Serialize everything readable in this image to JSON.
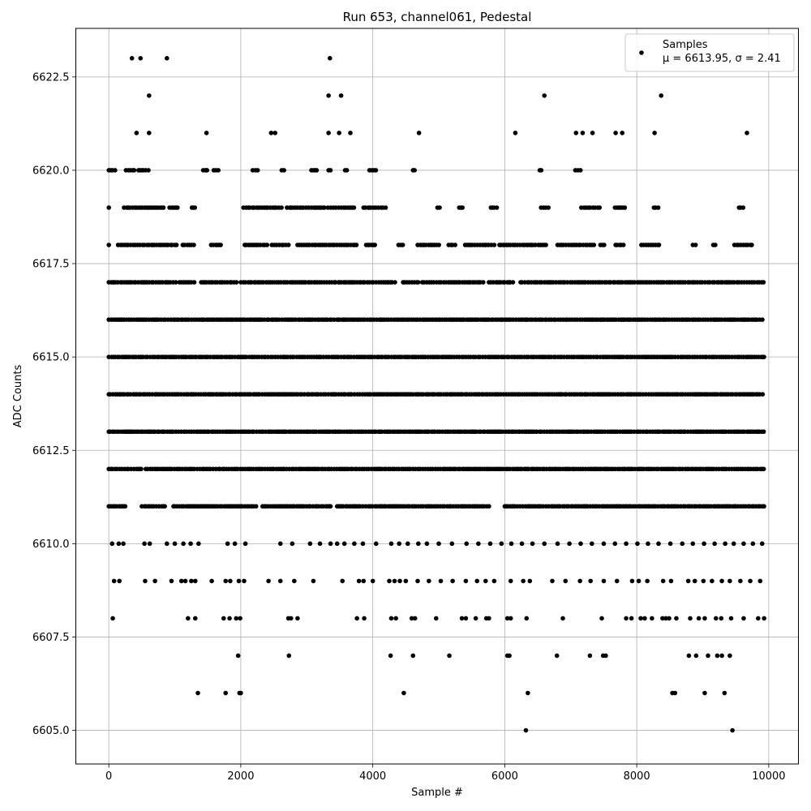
{
  "chart_data": {
    "type": "scatter",
    "title": "Run 653, channel061, Pedestal",
    "xlabel": "Sample #",
    "ylabel": "ADC Counts",
    "xlim": [
      -500,
      10450
    ],
    "ylim": [
      6604.1,
      6623.8
    ],
    "xticks": [
      0,
      2000,
      4000,
      6000,
      8000,
      10000
    ],
    "xtick_labels": [
      "0",
      "2000",
      "4000",
      "6000",
      "8000",
      "10000"
    ],
    "yticks": [
      6605.0,
      6607.5,
      6610.0,
      6612.5,
      6615.0,
      6617.5,
      6620.0,
      6622.5
    ],
    "ytick_labels": [
      "6605.0",
      "6607.5",
      "6610.0",
      "6612.5",
      "6615.0",
      "6617.5",
      "6620.0",
      "6622.5"
    ],
    "grid": true,
    "legend": {
      "position": "top-right",
      "series_label": "Samples",
      "stats_label": "μ = 6613.95, σ = 2.41"
    },
    "series": [
      {
        "name": "Samples",
        "color": "#000000",
        "points": [
          [
            350,
            6623
          ],
          [
            480,
            6623
          ],
          [
            880,
            6623
          ],
          [
            3350,
            6623
          ],
          [
            610,
            6622
          ],
          [
            3330,
            6622
          ],
          [
            3520,
            6622
          ],
          [
            6600,
            6622
          ],
          [
            8370,
            6622
          ],
          [
            420,
            6621
          ],
          [
            610,
            6621
          ],
          [
            1480,
            6621
          ],
          [
            2460,
            6621
          ],
          [
            2520,
            6621
          ],
          [
            3330,
            6621
          ],
          [
            3490,
            6621
          ],
          [
            3660,
            6621
          ],
          [
            4700,
            6621
          ],
          [
            6160,
            6621
          ],
          [
            7080,
            6621
          ],
          [
            7180,
            6621
          ],
          [
            7330,
            6621
          ],
          [
            7680,
            6621
          ],
          [
            7780,
            6621
          ],
          [
            8270,
            6621
          ],
          [
            9670,
            6621
          ],
          [
            6320,
            6605
          ],
          [
            9450,
            6605
          ],
          [
            1350,
            6606
          ],
          [
            1770,
            6606
          ],
          [
            1980,
            6606
          ],
          [
            2000,
            6606
          ],
          [
            4470,
            6606
          ],
          [
            6350,
            6606
          ],
          [
            8540,
            6606
          ],
          [
            8580,
            6606
          ],
          [
            9030,
            6606
          ],
          [
            9330,
            6606
          ],
          [
            1960,
            6607
          ],
          [
            2730,
            6607
          ],
          [
            4270,
            6607
          ],
          [
            4610,
            6607
          ],
          [
            5160,
            6607
          ],
          [
            6040,
            6607
          ],
          [
            6070,
            6607
          ],
          [
            6790,
            6607
          ],
          [
            7290,
            6607
          ],
          [
            7490,
            6607
          ],
          [
            7530,
            6607
          ],
          [
            8790,
            6607
          ],
          [
            8900,
            6607
          ],
          [
            9080,
            6607
          ],
          [
            9220,
            6607
          ],
          [
            9290,
            6607
          ],
          [
            9410,
            6607
          ],
          [
            60,
            6608
          ],
          [
            1200,
            6608
          ],
          [
            1310,
            6608
          ],
          [
            1740,
            6608
          ],
          [
            1830,
            6608
          ],
          [
            1930,
            6608
          ],
          [
            1990,
            6608
          ],
          [
            2720,
            6608
          ],
          [
            2760,
            6608
          ],
          [
            2860,
            6608
          ],
          [
            3760,
            6608
          ],
          [
            3870,
            6608
          ],
          [
            4280,
            6608
          ],
          [
            4350,
            6608
          ],
          [
            4590,
            6608
          ],
          [
            4640,
            6608
          ],
          [
            4960,
            6608
          ],
          [
            5350,
            6608
          ],
          [
            5410,
            6608
          ],
          [
            5560,
            6608
          ],
          [
            5720,
            6608
          ],
          [
            5760,
            6608
          ],
          [
            6040,
            6608
          ],
          [
            6090,
            6608
          ],
          [
            6330,
            6608
          ],
          [
            6880,
            6608
          ],
          [
            7470,
            6608
          ],
          [
            7840,
            6608
          ],
          [
            7920,
            6608
          ],
          [
            8060,
            6608
          ],
          [
            8120,
            6608
          ],
          [
            8230,
            6608
          ],
          [
            8390,
            6608
          ],
          [
            8440,
            6608
          ],
          [
            8490,
            6608
          ],
          [
            8600,
            6608
          ],
          [
            8810,
            6608
          ],
          [
            8940,
            6608
          ],
          [
            9030,
            6608
          ],
          [
            9200,
            6608
          ],
          [
            9280,
            6608
          ],
          [
            9430,
            6608
          ],
          [
            9620,
            6608
          ],
          [
            9840,
            6608
          ],
          [
            9930,
            6608
          ],
          [
            80,
            6609
          ],
          [
            160,
            6609
          ],
          [
            550,
            6609
          ],
          [
            700,
            6609
          ],
          [
            950,
            6609
          ],
          [
            1100,
            6609
          ],
          [
            1160,
            6609
          ],
          [
            1250,
            6609
          ],
          [
            1310,
            6609
          ],
          [
            1560,
            6609
          ],
          [
            1770,
            6609
          ],
          [
            1840,
            6609
          ],
          [
            1970,
            6609
          ],
          [
            2050,
            6609
          ],
          [
            2420,
            6609
          ],
          [
            2600,
            6609
          ],
          [
            2810,
            6609
          ],
          [
            3100,
            6609
          ],
          [
            3540,
            6609
          ],
          [
            3790,
            6609
          ],
          [
            3860,
            6609
          ],
          [
            4000,
            6609
          ],
          [
            4250,
            6609
          ],
          [
            4330,
            6609
          ],
          [
            4410,
            6609
          ],
          [
            4500,
            6609
          ],
          [
            4680,
            6609
          ],
          [
            4850,
            6609
          ],
          [
            5030,
            6609
          ],
          [
            5210,
            6609
          ],
          [
            5410,
            6609
          ],
          [
            5580,
            6609
          ],
          [
            5710,
            6609
          ],
          [
            5840,
            6609
          ],
          [
            6090,
            6609
          ],
          [
            6280,
            6609
          ],
          [
            6380,
            6609
          ],
          [
            6720,
            6609
          ],
          [
            6920,
            6609
          ],
          [
            7140,
            6609
          ],
          [
            7300,
            6609
          ],
          [
            7500,
            6609
          ],
          [
            7700,
            6609
          ],
          [
            7930,
            6609
          ],
          [
            8030,
            6609
          ],
          [
            8160,
            6609
          ],
          [
            8400,
            6609
          ],
          [
            8520,
            6609
          ],
          [
            8780,
            6609
          ],
          [
            8880,
            6609
          ],
          [
            9010,
            6609
          ],
          [
            9140,
            6609
          ],
          [
            9290,
            6609
          ],
          [
            9410,
            6609
          ],
          [
            9570,
            6609
          ],
          [
            9720,
            6609
          ],
          [
            9870,
            6609
          ],
          [
            50,
            6610
          ],
          [
            150,
            6610
          ],
          [
            220,
            6610
          ],
          [
            540,
            6610
          ],
          [
            620,
            6610
          ],
          [
            880,
            6610
          ],
          [
            1000,
            6610
          ],
          [
            1130,
            6610
          ],
          [
            1240,
            6610
          ],
          [
            1360,
            6610
          ],
          [
            1800,
            6610
          ],
          [
            1910,
            6610
          ],
          [
            2070,
            6610
          ],
          [
            2600,
            6610
          ],
          [
            2780,
            6610
          ],
          [
            3050,
            6610
          ],
          [
            3200,
            6610
          ],
          [
            3360,
            6610
          ],
          [
            3460,
            6610
          ],
          [
            3570,
            6610
          ],
          [
            3720,
            6610
          ],
          [
            3850,
            6610
          ],
          [
            4050,
            6610
          ],
          [
            4280,
            6610
          ],
          [
            4400,
            6610
          ],
          [
            4530,
            6610
          ],
          [
            4690,
            6610
          ],
          [
            4820,
            6610
          ],
          [
            5000,
            6610
          ],
          [
            5200,
            6610
          ],
          [
            5420,
            6610
          ],
          [
            5600,
            6610
          ],
          [
            5780,
            6610
          ],
          [
            5950,
            6610
          ],
          [
            6100,
            6610
          ],
          [
            6260,
            6610
          ],
          [
            6420,
            6610
          ],
          [
            6600,
            6610
          ],
          [
            6800,
            6610
          ],
          [
            6980,
            6610
          ],
          [
            7150,
            6610
          ],
          [
            7320,
            6610
          ],
          [
            7500,
            6610
          ],
          [
            7670,
            6610
          ],
          [
            7840,
            6610
          ],
          [
            8010,
            6610
          ],
          [
            8170,
            6610
          ],
          [
            8330,
            6610
          ],
          [
            8510,
            6610
          ],
          [
            8690,
            6610
          ],
          [
            8850,
            6610
          ],
          [
            9020,
            6610
          ],
          [
            9180,
            6610
          ],
          [
            9340,
            6610
          ],
          [
            9470,
            6610
          ],
          [
            9620,
            6610
          ],
          [
            9760,
            6610
          ],
          [
            9900,
            6610
          ]
        ]
      }
    ],
    "dense_rows": [
      {
        "y": 6611,
        "segments": [
          [
            0,
            260
          ],
          [
            500,
            860
          ],
          [
            980,
            2250
          ],
          [
            2330,
            3360
          ],
          [
            3460,
            5780
          ],
          [
            6000,
            9930
          ]
        ]
      },
      {
        "y": 6612,
        "segments": [
          [
            0,
            500
          ],
          [
            560,
            630
          ],
          [
            660,
            9930
          ]
        ]
      },
      {
        "y": 6613,
        "segments": [
          [
            0,
            9930
          ]
        ]
      },
      {
        "y": 6614,
        "segments": [
          [
            0,
            9930
          ]
        ]
      },
      {
        "y": 6615,
        "segments": [
          [
            0,
            9930
          ]
        ]
      },
      {
        "y": 6616,
        "segments": [
          [
            0,
            9930
          ]
        ]
      },
      {
        "y": 6617,
        "segments": [
          [
            0,
            1050
          ],
          [
            1070,
            1310
          ],
          [
            1400,
            1960
          ],
          [
            2000,
            4350
          ],
          [
            4460,
            4700
          ],
          [
            4750,
            5700
          ],
          [
            5760,
            6140
          ],
          [
            6240,
            9930
          ]
        ]
      },
      {
        "y": 6618,
        "segments": [
          [
            0,
            30
          ],
          [
            140,
            1030
          ],
          [
            1120,
            1300
          ],
          [
            1550,
            1700
          ],
          [
            2060,
            2410
          ],
          [
            2470,
            2760
          ],
          [
            2860,
            3760
          ],
          [
            3900,
            4050
          ],
          [
            4390,
            4490
          ],
          [
            4680,
            5040
          ],
          [
            5150,
            5280
          ],
          [
            5400,
            5840
          ],
          [
            5920,
            6480
          ],
          [
            6510,
            6640
          ],
          [
            6800,
            7360
          ],
          [
            7450,
            7520
          ],
          [
            7680,
            7830
          ],
          [
            8070,
            8360
          ],
          [
            8850,
            8900
          ],
          [
            9160,
            9220
          ],
          [
            9480,
            9780
          ]
        ]
      },
      {
        "y": 6619,
        "segments": [
          [
            0,
            20
          ],
          [
            230,
            850
          ],
          [
            920,
            1050
          ],
          [
            1260,
            1320
          ],
          [
            2040,
            2630
          ],
          [
            2700,
            3280
          ],
          [
            3320,
            3720
          ],
          [
            3860,
            4200
          ],
          [
            4980,
            5050
          ],
          [
            5310,
            5360
          ],
          [
            5790,
            5880
          ],
          [
            6550,
            6680
          ],
          [
            7160,
            7440
          ],
          [
            7670,
            7850
          ],
          [
            8260,
            8330
          ],
          [
            9550,
            9650
          ]
        ]
      },
      {
        "y": 6620,
        "segments": [
          [
            0,
            120
          ],
          [
            260,
            420
          ],
          [
            450,
            620
          ],
          [
            1430,
            1510
          ],
          [
            1590,
            1670
          ],
          [
            2180,
            2260
          ],
          [
            2620,
            2680
          ],
          [
            3070,
            3180
          ],
          [
            3330,
            3390
          ],
          [
            3580,
            3620
          ],
          [
            3950,
            4060
          ],
          [
            4610,
            4660
          ],
          [
            6530,
            6570
          ],
          [
            7070,
            7160
          ]
        ]
      }
    ]
  }
}
